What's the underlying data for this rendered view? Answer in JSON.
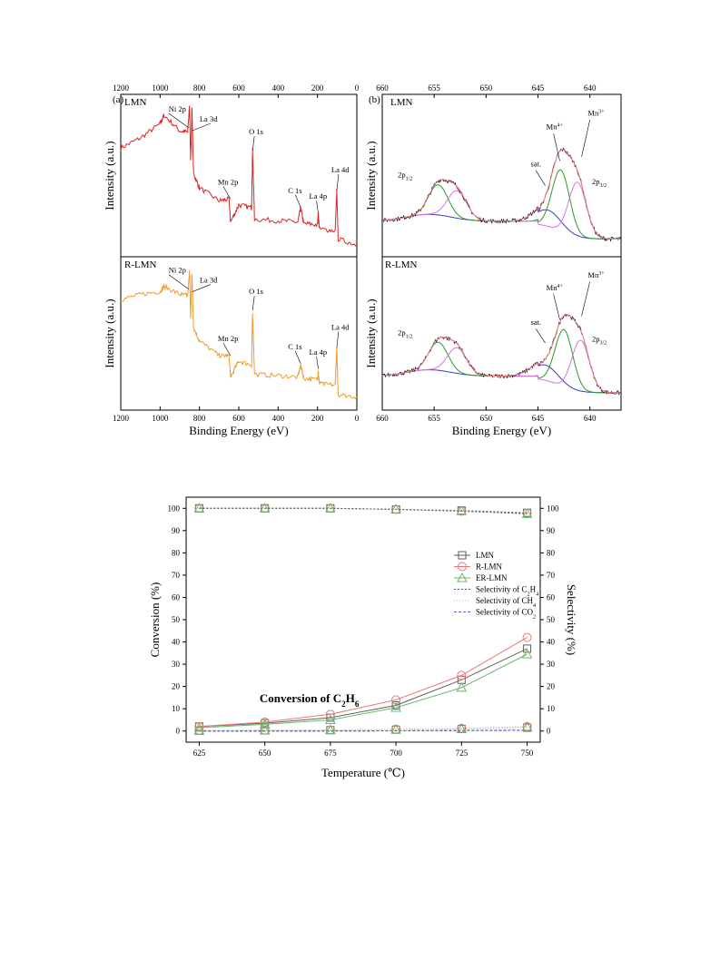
{
  "chart_data": [
    {
      "type": "line",
      "panel_letter": "(a)",
      "xlabel": "Binding Energy (eV)",
      "ylabel": "Intensity (a.u.)",
      "xlim": [
        1200,
        0
      ],
      "x_ticks": [
        1200,
        1000,
        800,
        600,
        400,
        200,
        0
      ],
      "x_reversed": true,
      "top_axis_ticks": true,
      "subplots": [
        {
          "sample": "LMN",
          "color": "#e02020",
          "annotations": [
            {
              "text": "Ni 2p",
              "x": 855
            },
            {
              "text": "La 3d",
              "x": 836
            },
            {
              "text": "Mn 2p",
              "x": 642
            },
            {
              "text": "O 1s",
              "x": 530
            },
            {
              "text": "C 1s",
              "x": 285
            },
            {
              "text": "La 4p",
              "x": 196
            },
            {
              "text": "La 4d",
              "x": 102
            }
          ],
          "series": [
            {
              "values_x": [
                1200,
                1100,
                1000,
                980,
                900,
                860,
                850,
                845,
                838,
                830,
                800,
                700,
                650,
                642,
                600,
                535,
                530,
                520,
                400,
                300,
                285,
                270,
                200,
                196,
                190,
                110,
                102,
                95,
                0
              ],
              "values_y": [
                0.7,
                0.77,
                0.87,
                0.93,
                0.82,
                0.81,
                1.0,
                0.6,
                0.97,
                0.52,
                0.42,
                0.33,
                0.34,
                0.18,
                0.3,
                0.28,
                0.68,
                0.2,
                0.19,
                0.18,
                0.28,
                0.17,
                0.16,
                0.24,
                0.13,
                0.12,
                0.4,
                0.06,
                0.02
              ]
            }
          ]
        },
        {
          "sample": "R-LMN",
          "color": "#ef9a26",
          "annotations": [
            {
              "text": "Ni 2p",
              "x": 855
            },
            {
              "text": "La 3d",
              "x": 836
            },
            {
              "text": "Mn 2p",
              "x": 642
            },
            {
              "text": "O 1s",
              "x": 530
            },
            {
              "text": "C 1s",
              "x": 285
            },
            {
              "text": "La 4p",
              "x": 196
            },
            {
              "text": "La 4d",
              "x": 102
            }
          ],
          "series": [
            {
              "values_x": [
                1200,
                1100,
                1000,
                980,
                900,
                860,
                850,
                845,
                838,
                830,
                800,
                700,
                650,
                642,
                600,
                535,
                530,
                520,
                400,
                300,
                285,
                270,
                200,
                196,
                190,
                110,
                102,
                95,
                0
              ],
              "values_y": [
                0.76,
                0.8,
                0.82,
                0.86,
                0.8,
                0.79,
                0.98,
                0.62,
                0.95,
                0.55,
                0.45,
                0.34,
                0.34,
                0.18,
                0.3,
                0.27,
                0.66,
                0.2,
                0.19,
                0.18,
                0.27,
                0.17,
                0.16,
                0.22,
                0.13,
                0.12,
                0.4,
                0.05,
                0.03
              ]
            }
          ]
        }
      ]
    },
    {
      "type": "line",
      "panel_letter": "(b)",
      "xlabel": "Binding Energy (eV)",
      "ylabel": "Intensity (a.u.)",
      "xlim": [
        660,
        637
      ],
      "x_ticks": [
        660,
        655,
        650,
        645,
        640
      ],
      "x_reversed": true,
      "top_axis_ticks": true,
      "subplots": [
        {
          "sample": "LMN",
          "annotations": [
            {
              "text": "2p",
              "sub": "1/2"
            },
            {
              "text": "sat."
            },
            {
              "text": "Mn",
              "sup": "4+"
            },
            {
              "text": "Mn",
              "sup": "3+"
            },
            {
              "text": "2p",
              "sub": "3/2"
            }
          ],
          "components": [
            {
              "name": "background",
              "color": "#3a3acc"
            },
            {
              "name": "Mn4+",
              "color": "#2a9a2a"
            },
            {
              "name": "Mn3+",
              "color": "#e070e0"
            },
            {
              "name": "envelope",
              "color": "#f08080"
            },
            {
              "name": "measured",
              "color": "#000000"
            }
          ]
        },
        {
          "sample": "R-LMN",
          "annotations": [
            {
              "text": "2p",
              "sub": "1/2"
            },
            {
              "text": "sat."
            },
            {
              "text": "Mn",
              "sup": "4+"
            },
            {
              "text": "Mn",
              "sup": "3+"
            },
            {
              "text": "2p",
              "sub": "3/2"
            }
          ],
          "components": [
            {
              "name": "background",
              "color": "#3a3acc"
            },
            {
              "name": "Mn4+",
              "color": "#2a9a2a"
            },
            {
              "name": "Mn3+",
              "color": "#e070e0"
            },
            {
              "name": "envelope",
              "color": "#f08080"
            },
            {
              "name": "measured",
              "color": "#000000"
            }
          ]
        }
      ]
    },
    {
      "type": "line",
      "xlabel": "Temperature (℃)",
      "ylabel": "Conversion (%)",
      "ylabel_right": "Selectivity (%)",
      "x": [
        625,
        650,
        675,
        700,
        725,
        750
      ],
      "xlim": [
        620,
        755
      ],
      "ylim": [
        -5,
        105
      ],
      "y_ticks": [
        0,
        10,
        20,
        30,
        40,
        50,
        60,
        70,
        80,
        90,
        100
      ],
      "annotation": {
        "text": "Conversion of C",
        "sub1": "2",
        "mid": "H",
        "sub2": "6"
      },
      "legend_position": "right",
      "series": [
        {
          "name": "LMN",
          "marker": "square",
          "color": "#606060",
          "conversion": [
            2.0,
            3.5,
            6.0,
            11.5,
            23.0,
            37.0
          ],
          "selectivity_C2H4": [
            100,
            100,
            100,
            99.5,
            99.0,
            98.0
          ],
          "selectivity_CH4": [
            0.2,
            0.3,
            0.4,
            0.6,
            0.9,
            1.5
          ],
          "selectivity_CO2": [
            0,
            0,
            0,
            0.1,
            0.2,
            0.3
          ]
        },
        {
          "name": "R-LMN",
          "marker": "circle",
          "color": "#e87878",
          "conversion": [
            2.0,
            4.0,
            7.5,
            14.0,
            25.0,
            42.0
          ],
          "selectivity_C2H4": [
            100,
            100,
            100,
            99.5,
            98.7,
            97.8
          ],
          "selectivity_CH4": [
            0.3,
            0.4,
            0.5,
            0.8,
            1.2,
            2.0
          ],
          "selectivity_CO2": [
            0,
            0,
            0,
            0.1,
            0.2,
            0.3
          ]
        },
        {
          "name": "ER-LMN",
          "marker": "triangle",
          "color": "#6ab86a",
          "conversion": [
            1.5,
            3.0,
            5.0,
            10.5,
            19.5,
            34.5
          ],
          "selectivity_C2H4": [
            100,
            100,
            100,
            99.6,
            98.8,
            97.5
          ],
          "selectivity_CH4": [
            0.2,
            0.3,
            0.5,
            0.7,
            1.0,
            1.8
          ],
          "selectivity_CO2": [
            0,
            0,
            0,
            0.1,
            0.2,
            0.4
          ]
        }
      ],
      "legend_lines": [
        {
          "text": "Selectivity of C",
          "sub": "2",
          "text2": "H",
          "sub2": "4",
          "color": "#606060",
          "dash": "2,2"
        },
        {
          "text": "Selectivity of CH",
          "sub": "4",
          "text2": "",
          "sub2": "",
          "color": "#b0b0b0",
          "dash": "1,2"
        },
        {
          "text": "Selectivity of CO",
          "sub": "2",
          "text2": "",
          "sub2": "",
          "color": "#5060d0",
          "dash": "3,2"
        }
      ]
    }
  ]
}
